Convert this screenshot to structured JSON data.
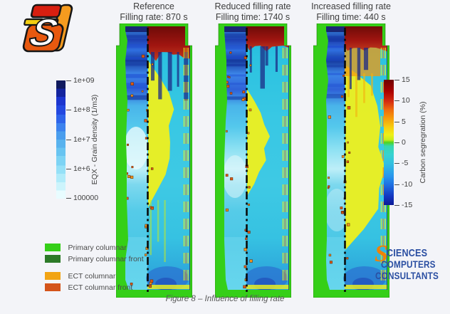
{
  "headers": [
    {
      "title": "Reference",
      "subtitle": "Filling rate: 870 s"
    },
    {
      "title": "Reduced filling rate",
      "subtitle": "Filling time: 1740 s"
    },
    {
      "title": "Increased filling rate",
      "subtitle": "Filling time: 440 s"
    }
  ],
  "left_colorbar": {
    "label": "EQX - Grain density (1/m3)",
    "ticks": [
      "1e+09",
      "1e+8",
      "1e+7",
      "1e+6",
      "100000"
    ],
    "top_color": "#101a5e",
    "bottom_color": "#e8fcff"
  },
  "right_colorbar": {
    "label": "Carbon segregration (%)",
    "ticks": [
      "15",
      "10",
      "5",
      "0",
      "-5",
      "-10",
      "-15"
    ],
    "range": [
      15,
      -15
    ]
  },
  "legend": {
    "items": [
      {
        "label": "Primary columnar",
        "color": "#35cf18"
      },
      {
        "label": "Primary columnar front",
        "color": "#2c7a28"
      },
      {
        "label": "ECT columnar",
        "color": "#f2a414"
      },
      {
        "label": "ECT columnar front",
        "color": "#d4541a"
      }
    ]
  },
  "company_logo": {
    "initial": "S",
    "line1": "CIENCES",
    "line2": "COMPUTERS",
    "line3": "CONSULTANTS",
    "blue": "#2b4fa2",
    "orange": "#ef8207"
  },
  "caption": "Figure 8 – Influence of filling rate",
  "colors": {
    "background": "#f3f4f8",
    "primary_columnar_green": "#35cf18",
    "cap_red": "#8f1010",
    "plume_yellow": "#eef01d"
  }
}
